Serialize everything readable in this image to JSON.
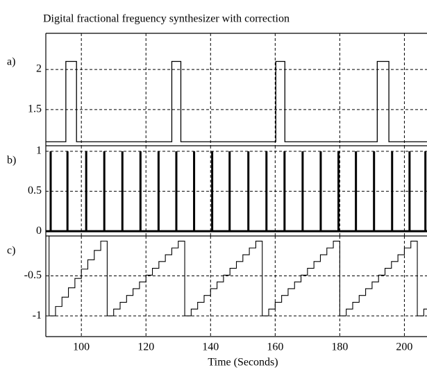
{
  "chart_data": [
    {
      "type": "line",
      "panel_label": "a)",
      "title": "Digital fractional freguency synthesizer with correction",
      "x": [
        89,
        95.2,
        95.2,
        98.5,
        98.5,
        128,
        128,
        130.8,
        130.8,
        160.2,
        160.2,
        163,
        163,
        191.6,
        191.6,
        195.2,
        195.2,
        207
      ],
      "values": [
        1.1,
        1.1,
        2.1,
        2.1,
        1.1,
        1.1,
        2.1,
        2.1,
        1.1,
        1.1,
        2.1,
        2.1,
        1.1,
        1.1,
        2.1,
        2.1,
        1.1,
        1.1
      ],
      "color": "#000000",
      "xlim": [
        89,
        207
      ],
      "ylim": [
        1.05,
        2.45
      ],
      "yticks": [
        1.5,
        2
      ],
      "grid": true
    },
    {
      "type": "stem",
      "panel_label": "b)",
      "x": [
        90.5,
        95.7,
        101.5,
        107.1,
        112.7,
        118.3,
        123.9,
        129.4,
        134.9,
        140.5,
        145.9,
        151.7,
        157.3,
        162.9,
        168.5,
        174.1,
        179.6,
        185,
        190.6,
        196.2,
        201.6,
        206.5
      ],
      "values": [
        1,
        1,
        1,
        1,
        1,
        1,
        1,
        1,
        1,
        1,
        1,
        1,
        1,
        1,
        1,
        1,
        1,
        1,
        1,
        1,
        1,
        1
      ],
      "color": "#000000",
      "xlim": [
        89,
        207
      ],
      "ylim": [
        -0.06,
        1.07
      ],
      "yticks": [
        0,
        0.5,
        1
      ],
      "grid": true
    },
    {
      "type": "step",
      "panel_label": "c)",
      "xlabel": "Time (Seconds)",
      "x": [
        90,
        92,
        94,
        96,
        98,
        100,
        102,
        104,
        106,
        108,
        110,
        112,
        114,
        116,
        118,
        120,
        122,
        124,
        126,
        128,
        130,
        132,
        134,
        136,
        138,
        140,
        142,
        144,
        146,
        148,
        150,
        152,
        154,
        156,
        158,
        160,
        162,
        164,
        166,
        168,
        170,
        172,
        174,
        176,
        178,
        180,
        182,
        184,
        186,
        188,
        190,
        192,
        194,
        196,
        198,
        200,
        202,
        204,
        206
      ],
      "values": [
        -1,
        -0.883,
        -0.766,
        -0.649,
        -0.532,
        -0.415,
        -0.298,
        -0.181,
        -0.064,
        -1,
        -0.915,
        -0.83,
        -0.745,
        -0.66,
        -0.575,
        -0.49,
        -0.405,
        -0.32,
        -0.235,
        -0.15,
        -0.065,
        -1,
        -0.915,
        -0.83,
        -0.745,
        -0.66,
        -0.575,
        -0.49,
        -0.405,
        -0.32,
        -0.235,
        -0.15,
        -0.065,
        -1,
        -0.915,
        -0.83,
        -0.745,
        -0.66,
        -0.575,
        -0.49,
        -0.405,
        -0.32,
        -0.235,
        -0.15,
        -0.065,
        -1,
        -0.915,
        -0.83,
        -0.745,
        -0.66,
        -0.575,
        -0.49,
        -0.405,
        -0.32,
        -0.235,
        -0.15,
        -0.065,
        -1,
        -0.915
      ],
      "color": "#000000",
      "xlim": [
        89,
        207
      ],
      "ylim": [
        -1.26,
        0
      ],
      "yticks": [
        -1,
        -0.5
      ],
      "xticks": [
        100,
        120,
        140,
        160,
        180,
        200
      ],
      "grid": true
    }
  ]
}
